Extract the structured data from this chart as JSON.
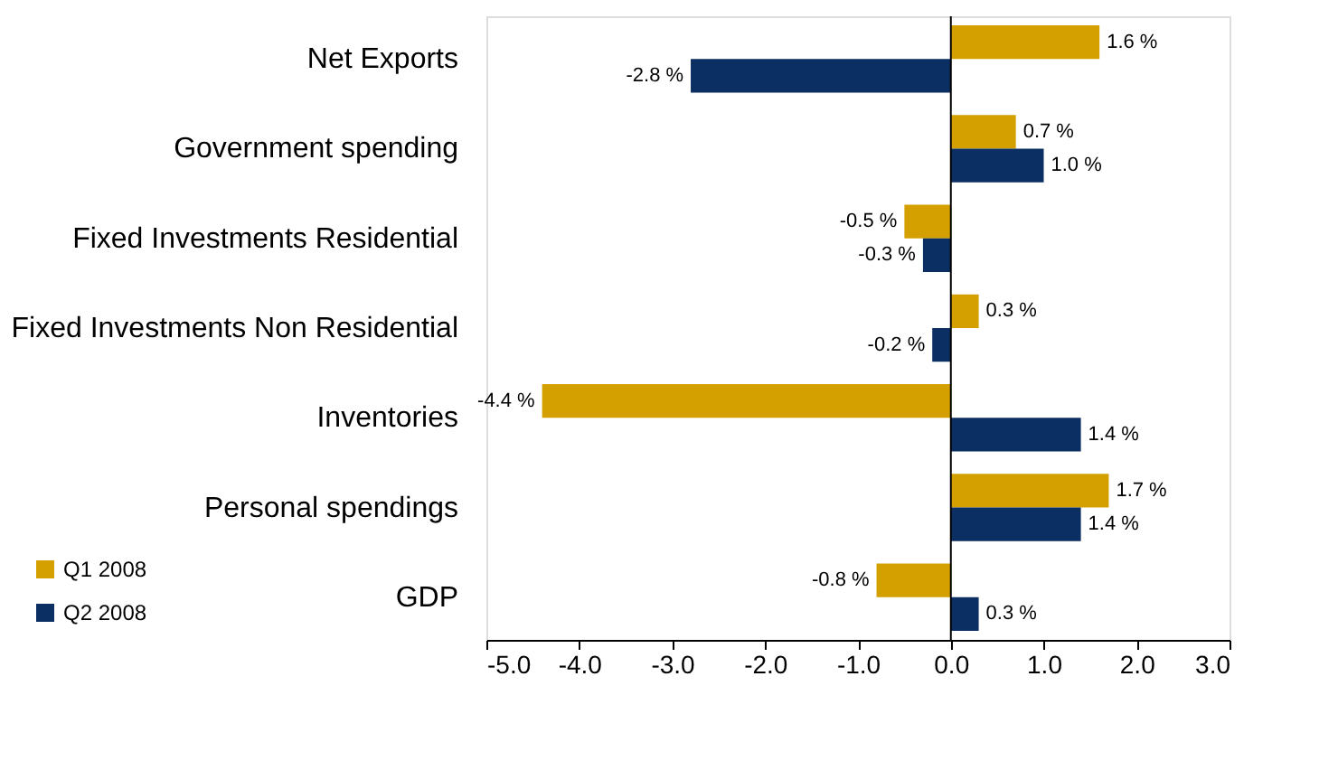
{
  "chart_data": {
    "type": "bar",
    "orientation": "horizontal",
    "categories": [
      "Net Exports",
      "Government spending",
      "Fixed Investments Residential",
      "Fixed Investments Non Residential",
      "Inventories",
      "Personal spendings",
      "GDP"
    ],
    "series": [
      {
        "name": "Q1 2008",
        "color": "#d4a000",
        "values": [
          1.6,
          0.7,
          -0.5,
          0.3,
          -4.4,
          1.7,
          -0.8
        ],
        "value_labels": [
          "1.6 %",
          "0.7 %",
          "-0.5 %",
          "0.3 %",
          "-4.4 %",
          "1.7 %",
          "-0.8 %"
        ]
      },
      {
        "name": "Q2 2008",
        "color": "#0b2e63",
        "values": [
          -2.8,
          1.0,
          -0.3,
          -0.2,
          1.4,
          1.4,
          0.3
        ],
        "value_labels": [
          "-2.8 %",
          "1.0 %",
          "-0.3 %",
          "-0.2 %",
          "1.4 %",
          "1.4 %",
          "0.3 %"
        ]
      }
    ],
    "xlim": [
      -5,
      3
    ],
    "xticks": [
      {
        "value": -5,
        "label": "-5.0"
      },
      {
        "value": -4,
        "label": "-4.0"
      },
      {
        "value": -3,
        "label": "-3.0"
      },
      {
        "value": -2,
        "label": "-2.0"
      },
      {
        "value": -1,
        "label": "-1.0"
      },
      {
        "value": 0,
        "label": "0.0"
      },
      {
        "value": 1,
        "label": "1.0"
      },
      {
        "value": 2,
        "label": "2.0"
      },
      {
        "value": 3,
        "label": "3.0"
      }
    ],
    "ref_lines": [
      {
        "axis": "x",
        "value": 0
      }
    ],
    "grid": false,
    "legend": "bottom left"
  }
}
